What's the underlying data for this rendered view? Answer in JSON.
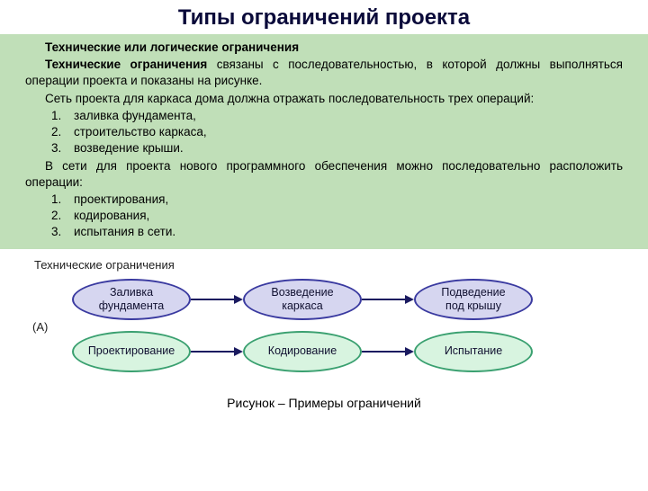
{
  "title": "Типы ограничений проекта",
  "text": {
    "heading": "Технические или логические ограничения",
    "p1a": "Технические ограничения",
    "p1b": " связаны с последовательностью, в которой должны выполняться операции проекта и показаны на рисунке.",
    "p2": "Сеть проекта для каркаса дома должна отражать последовательность трех операций:",
    "list1": [
      "заливка фундамента,",
      "строительство каркаса,",
      "возведение крыши."
    ],
    "p3": "В сети для проекта нового программного обеспечения можно последовательно расположить операции:",
    "list2": [
      "проектирования,",
      "кодирования,",
      "испытания в сети."
    ]
  },
  "diagram": {
    "type": "flowchart",
    "header": "Технические ограничения",
    "rowA_label": "(A)",
    "rowB_label": "",
    "row1": {
      "nodes": [
        "Заливка\nфундамента",
        "Возведение\nкаркаса",
        "Подведение\nпод крышу"
      ],
      "fill": "#d6d6f0",
      "border": "#3a3aa0",
      "text_color": "#101030"
    },
    "row2": {
      "nodes": [
        "Проектирование",
        "Кодирование",
        "Испытание"
      ],
      "fill": "#d8f4e0",
      "border": "#3aa070",
      "text_color": "#101030"
    },
    "ellipse_w": 132,
    "ellipse_h": 46,
    "row_gap": 58,
    "col_gap": 190,
    "arrow_color": "#1a1a60",
    "font_size": 12.5
  },
  "caption": "Рисунок – Примеры ограничений"
}
